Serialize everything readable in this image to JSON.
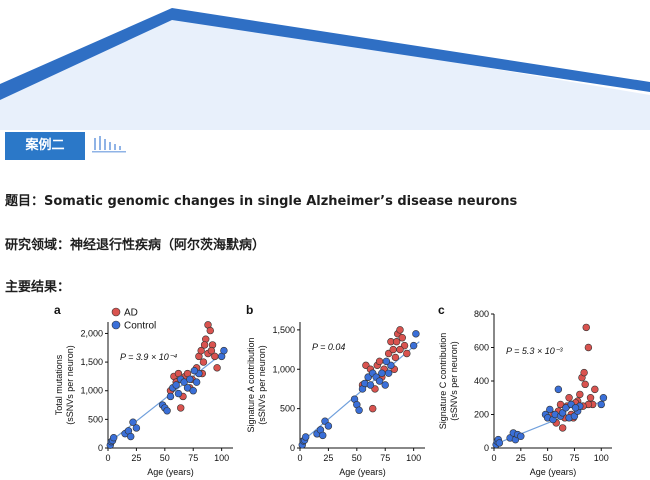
{
  "header": {
    "case_label": "案例二"
  },
  "content": {
    "title_line": "题目：Somatic genomic changes in single Alzheimer’s disease neurons",
    "field_line": "研究领域：神经退行性疾病（阿尔茨海默病）",
    "results_label": "主要结果："
  },
  "colors": {
    "banner_dark": "#2f6fc4",
    "banner_light": "#e8f0fb",
    "ad": "#d9534f",
    "control": "#3a6fd8",
    "fit": "#6f9fdc"
  },
  "chart_data": [
    {
      "panel": "a",
      "type": "scatter",
      "xlabel": "Age (years)",
      "ylabel": "Total mutations\n(sSNVs per neuron)",
      "xlim": [
        0,
        110
      ],
      "ylim": [
        0,
        2200
      ],
      "xticks": [
        0,
        25,
        50,
        75,
        100
      ],
      "yticks": [
        0,
        500,
        1000,
        1500,
        2000
      ],
      "ytick_labels": [
        "0",
        "500",
        "1,000",
        "1,500",
        "2,000"
      ],
      "annotation": "P = 3.9 × 10⁻⁴",
      "legend": [
        "AD",
        "Control"
      ],
      "fit_line": [
        [
          0,
          80
        ],
        [
          105,
          1720
        ]
      ],
      "series": [
        {
          "name": "AD",
          "points": [
            [
              55,
              1000
            ],
            [
              58,
              1250
            ],
            [
              60,
              1150
            ],
            [
              62,
              1300
            ],
            [
              64,
              700
            ],
            [
              66,
              900
            ],
            [
              68,
              1250
            ],
            [
              70,
              1300
            ],
            [
              72,
              1050
            ],
            [
              74,
              1200
            ],
            [
              78,
              1400
            ],
            [
              80,
              1600
            ],
            [
              82,
              1700
            ],
            [
              84,
              1500
            ],
            [
              86,
              1900
            ],
            [
              88,
              2150
            ],
            [
              90,
              2050
            ],
            [
              92,
              1800
            ],
            [
              94,
              1600
            ],
            [
              96,
              1400
            ],
            [
              85,
              1800
            ],
            [
              88,
              1650
            ],
            [
              91,
              1700
            ],
            [
              83,
              1300
            ]
          ]
        },
        {
          "name": "Control",
          "points": [
            [
              2,
              50
            ],
            [
              3,
              110
            ],
            [
              4,
              130
            ],
            [
              5,
              180
            ],
            [
              15,
              250
            ],
            [
              18,
              300
            ],
            [
              20,
              200
            ],
            [
              22,
              450
            ],
            [
              25,
              350
            ],
            [
              48,
              750
            ],
            [
              50,
              700
            ],
            [
              52,
              650
            ],
            [
              55,
              900
            ],
            [
              57,
              1050
            ],
            [
              60,
              1100
            ],
            [
              62,
              950
            ],
            [
              64,
              1200
            ],
            [
              67,
              1150
            ],
            [
              70,
              1050
            ],
            [
              72,
              1200
            ],
            [
              75,
              1000
            ],
            [
              78,
              1150
            ],
            [
              80,
              1300
            ],
            [
              100,
              1600
            ],
            [
              102,
              1700
            ],
            [
              76,
              1350
            ]
          ]
        }
      ]
    },
    {
      "panel": "b",
      "type": "scatter",
      "xlabel": "Age (years)",
      "ylabel": "Signature A contribution\n(sSNVs per neuron)",
      "xlim": [
        0,
        110
      ],
      "ylim": [
        0,
        1600
      ],
      "xticks": [
        0,
        25,
        50,
        75,
        100
      ],
      "yticks": [
        0,
        500,
        1000,
        1500
      ],
      "ytick_labels": [
        "0",
        "500",
        "1,000",
        "1,500"
      ],
      "annotation": "P = 0.04",
      "fit_line": [
        [
          0,
          60
        ],
        [
          105,
          1350
        ]
      ],
      "series": [
        {
          "name": "AD",
          "points": [
            [
              55,
              800
            ],
            [
              58,
              1050
            ],
            [
              60,
              900
            ],
            [
              62,
              1000
            ],
            [
              64,
              500
            ],
            [
              66,
              750
            ],
            [
              68,
              1050
            ],
            [
              70,
              1100
            ],
            [
              72,
              900
            ],
            [
              74,
              1000
            ],
            [
              78,
              1200
            ],
            [
              80,
              1350
            ],
            [
              82,
              1250
            ],
            [
              84,
              1150
            ],
            [
              86,
              1450
            ],
            [
              88,
              1500
            ],
            [
              90,
              1400
            ],
            [
              92,
              1300
            ],
            [
              94,
              1200
            ],
            [
              85,
              1350
            ],
            [
              88,
              1250
            ],
            [
              83,
              1000
            ]
          ]
        },
        {
          "name": "Control",
          "points": [
            [
              2,
              40
            ],
            [
              3,
              90
            ],
            [
              4,
              100
            ],
            [
              5,
              140
            ],
            [
              15,
              180
            ],
            [
              18,
              230
            ],
            [
              20,
              160
            ],
            [
              22,
              340
            ],
            [
              25,
              280
            ],
            [
              48,
              620
            ],
            [
              50,
              550
            ],
            [
              52,
              480
            ],
            [
              55,
              750
            ],
            [
              57,
              820
            ],
            [
              60,
              900
            ],
            [
              62,
              800
            ],
            [
              64,
              950
            ],
            [
              67,
              900
            ],
            [
              70,
              850
            ],
            [
              72,
              950
            ],
            [
              75,
              800
            ],
            [
              78,
              950
            ],
            [
              80,
              1050
            ],
            [
              100,
              1300
            ],
            [
              102,
              1450
            ],
            [
              76,
              1100
            ]
          ]
        }
      ]
    },
    {
      "panel": "c",
      "type": "scatter",
      "xlabel": "Age (years)",
      "ylabel": "Signature C contribution\n(sSNVs per neuron)",
      "xlim": [
        0,
        110
      ],
      "ylim": [
        0,
        800
      ],
      "xticks": [
        0,
        25,
        50,
        75,
        100
      ],
      "yticks": [
        0,
        200,
        400,
        600,
        800
      ],
      "ytick_labels": [
        "0",
        "200",
        "400",
        "600",
        "800"
      ],
      "annotation": "P = 5.3 × 10⁻³",
      "fit_line": [
        [
          0,
          20
        ],
        [
          105,
          290
        ]
      ],
      "series": [
        {
          "name": "AD",
          "points": [
            [
              55,
              200
            ],
            [
              58,
              150
            ],
            [
              60,
              220
            ],
            [
              62,
              260
            ],
            [
              64,
              120
            ],
            [
              66,
              180
            ],
            [
              68,
              250
            ],
            [
              70,
              300
            ],
            [
              72,
              200
            ],
            [
              74,
              180
            ],
            [
              78,
              280
            ],
            [
              80,
              320
            ],
            [
              82,
              420
            ],
            [
              84,
              450
            ],
            [
              86,
              720
            ],
            [
              88,
              600
            ],
            [
              90,
              300
            ],
            [
              92,
              260
            ],
            [
              94,
              350
            ],
            [
              85,
              380
            ],
            [
              88,
              260
            ],
            [
              83,
              250
            ],
            [
              76,
              270
            ]
          ]
        },
        {
          "name": "Control",
          "points": [
            [
              2,
              20
            ],
            [
              3,
              40
            ],
            [
              4,
              50
            ],
            [
              5,
              30
            ],
            [
              15,
              60
            ],
            [
              18,
              90
            ],
            [
              20,
              50
            ],
            [
              22,
              80
            ],
            [
              25,
              70
            ],
            [
              48,
              200
            ],
            [
              50,
              180
            ],
            [
              52,
              230
            ],
            [
              55,
              170
            ],
            [
              57,
              200
            ],
            [
              60,
              350
            ],
            [
              62,
              190
            ],
            [
              64,
              210
            ],
            [
              67,
              240
            ],
            [
              70,
              180
            ],
            [
              72,
              260
            ],
            [
              75,
              190
            ],
            [
              78,
              220
            ],
            [
              80,
              250
            ],
            [
              100,
              260
            ],
            [
              102,
              300
            ],
            [
              76,
              240
            ]
          ]
        }
      ]
    }
  ]
}
